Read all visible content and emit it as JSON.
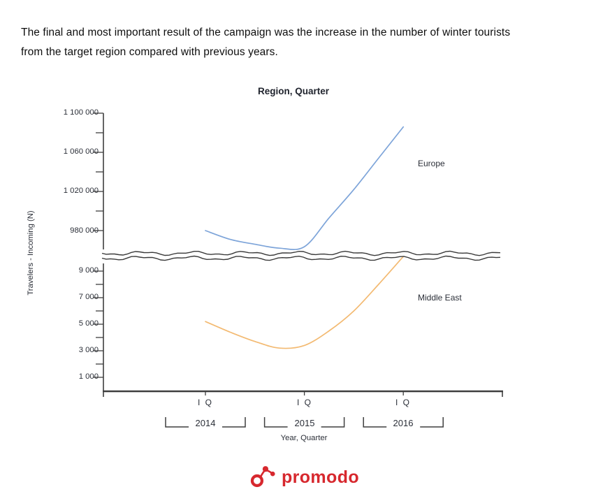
{
  "intro": {
    "line1": "The final and most important result of the campaign was the increase in the number of winter tourists",
    "line2": "from the target region compared with previous years."
  },
  "chart": {
    "title": "Region, Quarter",
    "y_axis_label": "Travelers - Incoming (N)",
    "x_axis_label": "Year, Quarter",
    "upper_ticks": [
      "1 100 000",
      "1 060 000",
      "1 020 000",
      "980 000"
    ],
    "lower_ticks": [
      "9 000",
      "7 000",
      "5 000",
      "3 000",
      "1 000"
    ],
    "quarter_tick_label": "I Q",
    "years": [
      "2014",
      "2015",
      "2016"
    ],
    "series_labels": {
      "europe": "Europe",
      "middle_east": "Middle East"
    }
  },
  "chart_data": {
    "type": "line",
    "title": "Region, Quarter",
    "xlabel": "Year, Quarter",
    "ylabel": "Travelers - Incoming (N)",
    "x": [
      "2014 Q1",
      "2014 Q2",
      "2014 Q3",
      "2014 Q4",
      "2015 Q1",
      "2015 Q2",
      "2015 Q3",
      "2015 Q4",
      "2016 Q1"
    ],
    "x_tick_labels": [
      "I Q",
      "I Q",
      "I Q"
    ],
    "x_tick_positions": [
      "2014 Q1",
      "2015 Q1",
      "2016 Q1"
    ],
    "axis_break": {
      "lower_scale_max": 10000,
      "upper_scale_min": 960000
    },
    "upper_axis_tick_values": [
      1100000,
      1060000,
      1020000,
      980000
    ],
    "lower_axis_tick_values": [
      9000,
      7000,
      5000,
      3000,
      1000
    ],
    "grid": false,
    "legend_position": "labels-at-right-of-lines",
    "series": [
      {
        "name": "Europe",
        "color": "#7da4d9",
        "scale": "upper",
        "values": [
          980000,
          971000,
          966000,
          962000,
          963500,
          993000,
          1022000,
          1054000,
          1086000
        ]
      },
      {
        "name": "Middle East",
        "color": "#f3ba72",
        "scale": "lower",
        "values": [
          5200,
          4400,
          3700,
          3200,
          3400,
          4500,
          6000,
          8000,
          10100
        ],
        "note": "final point rises off the lower scale and ends at the axis scale break"
      }
    ],
    "colors": {
      "axis": "#3f3f3f",
      "text": "#2b2f38",
      "title": "#20242e"
    }
  },
  "footer": {
    "brand": "promodo",
    "brand_color": "#d7282e"
  }
}
